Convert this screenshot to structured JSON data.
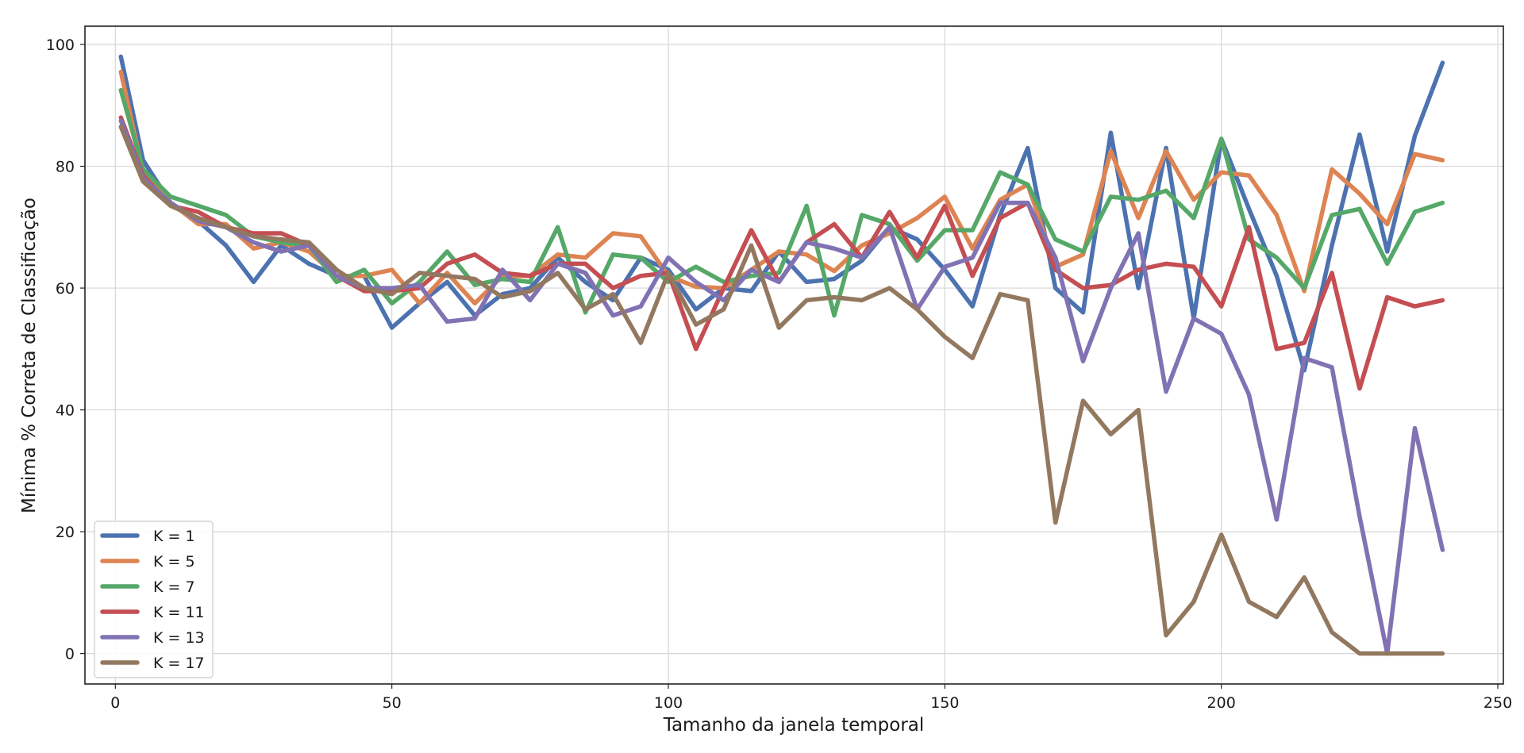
{
  "chart_data": {
    "type": "line",
    "xlabel": "Tamanho da janela temporal",
    "ylabel": "Mínima % Correta de Classificação",
    "xlim": [
      -5.5,
      251
    ],
    "ylim": [
      -5,
      103
    ],
    "xticks": [
      0,
      50,
      100,
      150,
      200,
      250
    ],
    "yticks": [
      0,
      20,
      40,
      60,
      80,
      100
    ],
    "grid": true,
    "legend_position": "lower-left",
    "x": [
      1,
      5,
      10,
      15,
      20,
      25,
      30,
      35,
      40,
      45,
      50,
      55,
      60,
      65,
      70,
      75,
      80,
      85,
      90,
      95,
      100,
      105,
      110,
      115,
      120,
      125,
      130,
      135,
      140,
      145,
      150,
      155,
      160,
      165,
      170,
      175,
      180,
      185,
      190,
      195,
      200,
      205,
      210,
      215,
      220,
      225,
      230,
      235,
      240
    ],
    "series": [
      {
        "name": "K = 1",
        "color": "#4c72b0",
        "values": [
          98,
          81,
          74,
          71,
          67,
          61,
          67,
          64,
          62,
          62,
          53.5,
          57.5,
          61,
          55.5,
          59,
          60,
          65,
          61,
          58,
          65,
          63,
          56.5,
          60,
          59.5,
          66,
          61,
          61.5,
          64.5,
          70,
          68,
          63,
          57,
          72,
          83,
          60,
          56,
          85.5,
          60,
          83,
          55,
          84.5,
          73,
          62,
          46.5,
          67,
          85.2,
          66,
          85,
          97
        ]
      },
      {
        "name": "K = 5",
        "color": "#dd8452",
        "values": [
          95.5,
          79,
          74,
          70.5,
          70.5,
          66.5,
          67.5,
          66,
          62,
          62,
          63,
          57.5,
          62.5,
          57.5,
          62,
          62,
          65.5,
          65,
          69,
          68.5,
          62,
          60.2,
          60,
          63,
          66,
          65.5,
          62.8,
          67,
          69,
          71.5,
          75,
          66.5,
          74.5,
          77,
          63.5,
          65.5,
          82.5,
          71.5,
          82.5,
          74.5,
          79,
          78.5,
          72,
          59.5,
          79.5,
          75.5,
          70.5,
          82,
          81
        ]
      },
      {
        "name": "K = 7",
        "color": "#55a868",
        "values": [
          92.5,
          79.5,
          75,
          73.5,
          72,
          68.5,
          67.5,
          67,
          61,
          63,
          57.5,
          61,
          66,
          60.5,
          61.5,
          61,
          70,
          56,
          65.5,
          65,
          61,
          63.5,
          61,
          62,
          62.5,
          73.5,
          55.5,
          72,
          70.5,
          64.5,
          69.5,
          69.5,
          79,
          77,
          68,
          66,
          75,
          74.5,
          76,
          71.5,
          84.5,
          68,
          65,
          60,
          72,
          73,
          64,
          72.5,
          74
        ]
      },
      {
        "name": "K = 11",
        "color": "#c44e52",
        "values": [
          88,
          78.5,
          73.5,
          72.5,
          70,
          69,
          69,
          67,
          62,
          59.5,
          59.5,
          60,
          64,
          65.5,
          62.5,
          62,
          64,
          64,
          60,
          62,
          62.5,
          50,
          60,
          69.5,
          61,
          67.5,
          70.5,
          65,
          72.5,
          65,
          73.5,
          62,
          71.5,
          74,
          63,
          60,
          60.5,
          63,
          64,
          63.5,
          57,
          70,
          50,
          51,
          62.5,
          43.5,
          58.5,
          57,
          58
        ]
      },
      {
        "name": "K = 13",
        "color": "#8172b3",
        "values": [
          87.5,
          78,
          74,
          71,
          70,
          67.5,
          66,
          67,
          62,
          60,
          60,
          60.5,
          54.5,
          55,
          63,
          58,
          64,
          62.5,
          55.5,
          57,
          65,
          61,
          58,
          63,
          61,
          67.5,
          66.5,
          65,
          70,
          56.5,
          63.5,
          65,
          74,
          74,
          65,
          48,
          60,
          69,
          43,
          55,
          52.5,
          42.5,
          22,
          48.5,
          47,
          22.5,
          0,
          37,
          17
        ]
      },
      {
        "name": "K = 17",
        "color": "#937860",
        "values": [
          86.5,
          77.5,
          73.5,
          71.5,
          70,
          68.5,
          68,
          67.5,
          63,
          60,
          59,
          62.5,
          62,
          61.5,
          58.5,
          59.5,
          62.5,
          56.5,
          59,
          51,
          62.5,
          54,
          56.5,
          67,
          53.5,
          58,
          58.5,
          58,
          60,
          56.5,
          52,
          48.5,
          59,
          58,
          21.5,
          41.5,
          36,
          40,
          3,
          8.5,
          19.5,
          8.5,
          6,
          12.5,
          3.5,
          0,
          0,
          0,
          0
        ]
      }
    ]
  }
}
